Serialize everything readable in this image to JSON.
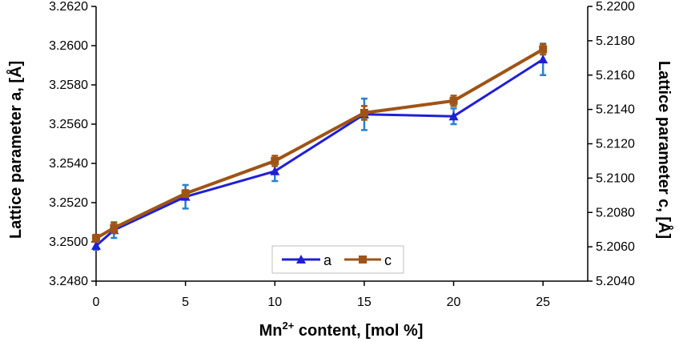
{
  "chart_data": {
    "type": "line",
    "xlabel_main": "Mn",
    "xlabel_sup": "2+",
    "xlabel_rest": " content, [mol %]",
    "ylabel_left": "Lattice parameter a, [Å]",
    "ylabel_right": "Lattice parameter c, [Å]",
    "x": [
      0,
      1,
      5,
      10,
      15,
      20,
      25
    ],
    "x_ticks": [
      "0",
      "5",
      "10",
      "15",
      "20",
      "25"
    ],
    "x_tick_values": [
      0,
      5,
      10,
      15,
      20,
      25
    ],
    "xlim": [
      0,
      27.5
    ],
    "ylim_left": [
      3.248,
      3.262
    ],
    "ylim_right": [
      5.204,
      5.22
    ],
    "y_ticks_left": [
      "3.2480",
      "3.2500",
      "3.2520",
      "3.2540",
      "3.2560",
      "3.2580",
      "3.2600",
      "3.2620"
    ],
    "y_tick_values_left": [
      3.248,
      3.25,
      3.252,
      3.254,
      3.256,
      3.258,
      3.26,
      3.262
    ],
    "y_ticks_right": [
      "5.2040",
      "5.2060",
      "5.2080",
      "5.2100",
      "5.2120",
      "5.2140",
      "5.2160",
      "5.2180",
      "5.2200"
    ],
    "y_tick_values_right": [
      5.204,
      5.206,
      5.208,
      5.21,
      5.212,
      5.214,
      5.216,
      5.218,
      5.22
    ],
    "series": [
      {
        "name": "a",
        "axis": "left",
        "color": "#1f1fd6",
        "errbar_color": "#2a7fd4",
        "marker": "triangle",
        "values": [
          3.2498,
          3.2506,
          3.2523,
          3.2536,
          3.2565,
          3.2564,
          3.2593
        ],
        "errors": [
          0.0002,
          0.0004,
          0.0006,
          0.0005,
          0.0008,
          0.0004,
          0.0008
        ]
      },
      {
        "name": "c",
        "axis": "right",
        "color": "#9e5416",
        "errbar_color": "#9e5416",
        "marker": "square",
        "values": [
          5.2065,
          5.2071,
          5.2091,
          5.211,
          5.2138,
          5.2145,
          5.2175
        ],
        "errors": [
          0.0002,
          0.0003,
          0.0002,
          0.0003,
          0.0004,
          0.0003,
          0.0003
        ]
      }
    ],
    "legend": [
      "a",
      "c"
    ],
    "legend_position": "bottom-center"
  }
}
